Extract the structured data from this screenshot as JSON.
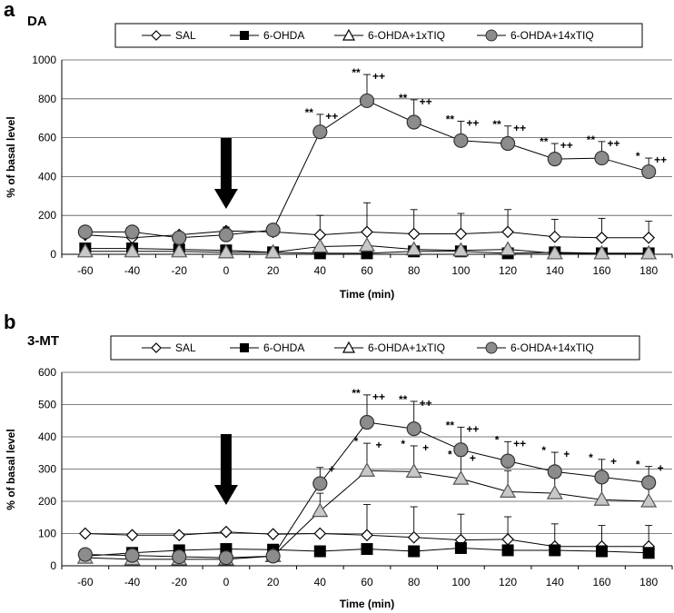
{
  "chart_data": [
    {
      "type": "line",
      "panel_label": "a",
      "title": "DA",
      "xlabel": "Time (min)",
      "ylabel": "% of basal level",
      "x": [
        -60,
        -40,
        -20,
        0,
        20,
        40,
        60,
        80,
        100,
        120,
        140,
        160,
        180
      ],
      "ylim": [
        0,
        1000
      ],
      "yticks": [
        0,
        200,
        400,
        600,
        800,
        1000
      ],
      "grid": true,
      "legend_position": "top",
      "arrow_at_x": 0,
      "series": [
        {
          "name": "SAL",
          "marker": "diamond-open",
          "values": [
            100,
            85,
            100,
            120,
            115,
            100,
            115,
            105,
            105,
            115,
            90,
            85,
            85
          ],
          "error": [
            0,
            0,
            0,
            0,
            0,
            100,
            150,
            125,
            105,
            115,
            90,
            100,
            85
          ]
        },
        {
          "name": "6-OHDA",
          "marker": "square-filled",
          "values": [
            30,
            30,
            25,
            20,
            10,
            5,
            5,
            15,
            15,
            5,
            10,
            5,
            5
          ],
          "error": [
            0,
            0,
            0,
            0,
            0,
            0,
            0,
            0,
            0,
            0,
            0,
            0,
            0
          ]
        },
        {
          "name": "6-OHDA+1xTIQ",
          "marker": "triangle-open",
          "values": [
            15,
            15,
            15,
            10,
            10,
            40,
            45,
            25,
            20,
            25,
            5,
            5,
            5
          ],
          "error": [
            0,
            0,
            0,
            0,
            0,
            0,
            0,
            0,
            0,
            0,
            0,
            0,
            0
          ]
        },
        {
          "name": "6-OHDA+14xTIQ",
          "marker": "circle-filled",
          "values": [
            115,
            115,
            85,
            100,
            125,
            630,
            790,
            680,
            585,
            570,
            490,
            495,
            425
          ],
          "error": [
            0,
            0,
            0,
            40,
            0,
            90,
            135,
            115,
            100,
            90,
            80,
            85,
            70
          ]
        }
      ],
      "annotations": [
        {
          "x": 40,
          "text": "**",
          "text2": "++"
        },
        {
          "x": 60,
          "text": "**",
          "text2": "++"
        },
        {
          "x": 80,
          "text": "**",
          "text2": "++"
        },
        {
          "x": 100,
          "text": "**",
          "text2": "++"
        },
        {
          "x": 120,
          "text": "**",
          "text2": "++"
        },
        {
          "x": 140,
          "text": "**",
          "text2": "++"
        },
        {
          "x": 160,
          "text": "**",
          "text2": "++"
        },
        {
          "x": 180,
          "text": "*",
          "text2": "++"
        }
      ]
    },
    {
      "type": "line",
      "panel_label": "b",
      "title": "3-MT",
      "xlabel": "Time (min)",
      "ylabel": "% of basal level",
      "x": [
        -60,
        -40,
        -20,
        0,
        20,
        40,
        60,
        80,
        100,
        120,
        140,
        160,
        180
      ],
      "ylim": [
        0,
        600
      ],
      "yticks": [
        0,
        100,
        200,
        300,
        400,
        500,
        600
      ],
      "grid": true,
      "legend_position": "top",
      "arrow_at_x": 0,
      "series": [
        {
          "name": "SAL",
          "marker": "diamond-open",
          "values": [
            100,
            95,
            95,
            105,
            98,
            100,
            95,
            88,
            80,
            82,
            60,
            60,
            60
          ],
          "error": [
            0,
            0,
            0,
            0,
            0,
            0,
            95,
            95,
            80,
            70,
            70,
            65,
            65
          ]
        },
        {
          "name": "6-OHDA",
          "marker": "square-filled",
          "values": [
            30,
            40,
            48,
            52,
            50,
            45,
            52,
            45,
            55,
            48,
            48,
            45,
            40
          ],
          "error": [
            0,
            0,
            0,
            0,
            0,
            0,
            0,
            0,
            0,
            0,
            0,
            0,
            0
          ]
        },
        {
          "name": "6-OHDA+1xTIQ",
          "marker": "triangle-open",
          "values": [
            25,
            20,
            20,
            20,
            30,
            170,
            295,
            292,
            270,
            230,
            225,
            205,
            200
          ],
          "error": [
            0,
            0,
            0,
            0,
            0,
            55,
            85,
            80,
            70,
            65,
            60,
            55,
            55
          ]
        },
        {
          "name": "6-OHDA+14xTIQ",
          "marker": "circle-filled",
          "values": [
            35,
            32,
            28,
            25,
            30,
            255,
            445,
            425,
            360,
            325,
            292,
            275,
            258
          ],
          "error": [
            0,
            0,
            0,
            0,
            0,
            50,
            85,
            85,
            70,
            60,
            60,
            55,
            50
          ]
        }
      ],
      "annotations": [
        {
          "x": 60,
          "text": "**",
          "text2": "++"
        },
        {
          "x": 80,
          "text": "**",
          "text2": "++"
        },
        {
          "x": 100,
          "text": "**",
          "text2": "++"
        },
        {
          "x": 120,
          "text": "*",
          "text2": "++"
        },
        {
          "x": 140,
          "text": "*",
          "text2": "+"
        },
        {
          "x": 160,
          "text": "*",
          "text2": "+"
        },
        {
          "x": 180,
          "text": "*",
          "text2": "+"
        },
        {
          "x": 40,
          "text": "",
          "text2": "+"
        },
        {
          "x": 60,
          "text": "*",
          "text2": "+",
          "series": "6-OHDA+1xTIQ"
        },
        {
          "x": 80,
          "text": "*",
          "text2": "+",
          "series": "6-OHDA+1xTIQ"
        },
        {
          "x": 100,
          "text": "*",
          "text2": "+",
          "series": "6-OHDA+1xTIQ"
        }
      ]
    }
  ]
}
